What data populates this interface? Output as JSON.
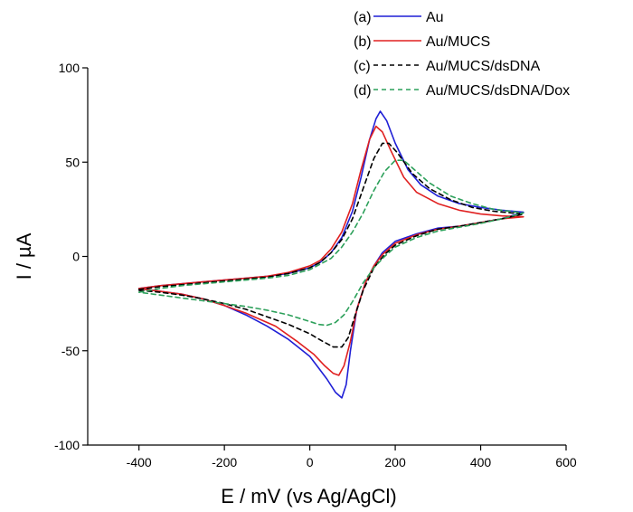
{
  "chart_data": {
    "type": "line",
    "title": "",
    "xlabel": "E / mV (vs Ag/AgCl)",
    "ylabel": "I / µA",
    "xlim": [
      -520,
      600
    ],
    "ylim": [
      -100,
      100
    ],
    "xticks": [
      -400,
      -200,
      0,
      200,
      400,
      600
    ],
    "yticks": [
      -100,
      -50,
      0,
      50,
      100
    ],
    "xtick_labels": [
      "-400",
      "-200",
      "0",
      "200",
      "400",
      "600"
    ],
    "ytick_labels": [
      "-100",
      "-50",
      "0",
      "50",
      "100"
    ],
    "legend_position": "top-right",
    "series": [
      {
        "name": "Au",
        "tag": "(a)",
        "color": "#1f1fd6",
        "dash": "solid",
        "forward": [
          [
            -400,
            -17
          ],
          [
            -350,
            -15.5
          ],
          [
            -300,
            -14.5
          ],
          [
            -250,
            -13.5
          ],
          [
            -200,
            -12.5
          ],
          [
            -150,
            -11.5
          ],
          [
            -100,
            -10.5
          ],
          [
            -50,
            -9
          ],
          [
            0,
            -6
          ],
          [
            25,
            -3
          ],
          [
            50,
            2
          ],
          [
            75,
            10
          ],
          [
            100,
            24
          ],
          [
            120,
            42
          ],
          [
            140,
            62
          ],
          [
            155,
            73
          ],
          [
            165,
            77
          ],
          [
            180,
            72
          ],
          [
            200,
            60
          ],
          [
            230,
            46
          ],
          [
            260,
            38
          ],
          [
            300,
            32
          ],
          [
            350,
            28
          ],
          [
            400,
            26
          ],
          [
            450,
            24.5
          ],
          [
            500,
            23.5
          ]
        ],
        "reverse": [
          [
            500,
            23.5
          ],
          [
            450,
            20
          ],
          [
            400,
            18
          ],
          [
            350,
            16
          ],
          [
            300,
            15
          ],
          [
            250,
            12
          ],
          [
            200,
            8
          ],
          [
            170,
            2
          ],
          [
            150,
            -5
          ],
          [
            130,
            -14
          ],
          [
            110,
            -28
          ],
          [
            95,
            -50
          ],
          [
            85,
            -68
          ],
          [
            75,
            -75
          ],
          [
            60,
            -72
          ],
          [
            40,
            -65
          ],
          [
            20,
            -59
          ],
          [
            0,
            -53
          ],
          [
            -50,
            -44
          ],
          [
            -100,
            -37
          ],
          [
            -150,
            -31
          ],
          [
            -200,
            -26
          ],
          [
            -250,
            -22.5
          ],
          [
            -300,
            -20
          ],
          [
            -350,
            -18.5
          ],
          [
            -400,
            -17
          ]
        ]
      },
      {
        "name": "Au/MUCS",
        "tag": "(b)",
        "color": "#e02020",
        "dash": "solid",
        "forward": [
          [
            -400,
            -17
          ],
          [
            -350,
            -15.5
          ],
          [
            -300,
            -14.5
          ],
          [
            -250,
            -13.5
          ],
          [
            -200,
            -12.5
          ],
          [
            -150,
            -11.5
          ],
          [
            -100,
            -10.5
          ],
          [
            -50,
            -8.5
          ],
          [
            0,
            -5
          ],
          [
            25,
            -2
          ],
          [
            50,
            4
          ],
          [
            75,
            13
          ],
          [
            100,
            28
          ],
          [
            120,
            46
          ],
          [
            140,
            62
          ],
          [
            155,
            69
          ],
          [
            170,
            66
          ],
          [
            190,
            56
          ],
          [
            220,
            42
          ],
          [
            250,
            34
          ],
          [
            300,
            28
          ],
          [
            350,
            24.5
          ],
          [
            400,
            22.5
          ],
          [
            450,
            21.5
          ],
          [
            500,
            21
          ]
        ],
        "reverse": [
          [
            500,
            21
          ],
          [
            450,
            20
          ],
          [
            400,
            18
          ],
          [
            350,
            16
          ],
          [
            300,
            14.5
          ],
          [
            250,
            11.5
          ],
          [
            200,
            7
          ],
          [
            170,
            1
          ],
          [
            150,
            -5
          ],
          [
            130,
            -14
          ],
          [
            110,
            -28
          ],
          [
            95,
            -45
          ],
          [
            80,
            -58
          ],
          [
            68,
            -63
          ],
          [
            55,
            -62
          ],
          [
            35,
            -58
          ],
          [
            10,
            -52
          ],
          [
            -30,
            -45
          ],
          [
            -80,
            -37
          ],
          [
            -150,
            -30
          ],
          [
            -200,
            -26
          ],
          [
            -250,
            -22.5
          ],
          [
            -300,
            -20
          ],
          [
            -350,
            -18.5
          ],
          [
            -400,
            -17
          ]
        ]
      },
      {
        "name": "Au/MUCS/dsDNA",
        "tag": "(c)",
        "color": "#000000",
        "dash": "dashed",
        "forward": [
          [
            -400,
            -17.5
          ],
          [
            -350,
            -16
          ],
          [
            -300,
            -15
          ],
          [
            -250,
            -14
          ],
          [
            -200,
            -13
          ],
          [
            -150,
            -12
          ],
          [
            -100,
            -11
          ],
          [
            -50,
            -9
          ],
          [
            0,
            -6
          ],
          [
            25,
            -3
          ],
          [
            50,
            2
          ],
          [
            75,
            9
          ],
          [
            100,
            20
          ],
          [
            125,
            36
          ],
          [
            150,
            52
          ],
          [
            170,
            60
          ],
          [
            185,
            60
          ],
          [
            205,
            55
          ],
          [
            240,
            44
          ],
          [
            280,
            36
          ],
          [
            330,
            30
          ],
          [
            380,
            26
          ],
          [
            430,
            24
          ],
          [
            500,
            22.5
          ]
        ],
        "reverse": [
          [
            500,
            22.5
          ],
          [
            450,
            20
          ],
          [
            400,
            18
          ],
          [
            350,
            16
          ],
          [
            300,
            14.5
          ],
          [
            250,
            11
          ],
          [
            200,
            6
          ],
          [
            175,
            1
          ],
          [
            150,
            -6
          ],
          [
            125,
            -18
          ],
          [
            105,
            -32
          ],
          [
            90,
            -43
          ],
          [
            75,
            -48
          ],
          [
            55,
            -48
          ],
          [
            30,
            -45
          ],
          [
            0,
            -41
          ],
          [
            -50,
            -36
          ],
          [
            -100,
            -32
          ],
          [
            -150,
            -28
          ],
          [
            -200,
            -25
          ],
          [
            -250,
            -22.5
          ],
          [
            -300,
            -20.5
          ],
          [
            -350,
            -19
          ],
          [
            -400,
            -18
          ]
        ]
      },
      {
        "name": "Au/MUCS/dsDNA/Dox",
        "tag": "(d)",
        "color": "#2ca05a",
        "dash": "dashed",
        "forward": [
          [
            -400,
            -19
          ],
          [
            -350,
            -17
          ],
          [
            -300,
            -15.5
          ],
          [
            -250,
            -14.5
          ],
          [
            -200,
            -13.5
          ],
          [
            -150,
            -12.5
          ],
          [
            -100,
            -11.5
          ],
          [
            -50,
            -10
          ],
          [
            0,
            -7
          ],
          [
            50,
            -1
          ],
          [
            75,
            5
          ],
          [
            100,
            13
          ],
          [
            125,
            23
          ],
          [
            150,
            35
          ],
          [
            175,
            45
          ],
          [
            200,
            51
          ],
          [
            220,
            51
          ],
          [
            245,
            46
          ],
          [
            280,
            39
          ],
          [
            330,
            32
          ],
          [
            380,
            28
          ],
          [
            430,
            25
          ],
          [
            500,
            23
          ]
        ],
        "reverse": [
          [
            500,
            23
          ],
          [
            450,
            20
          ],
          [
            400,
            17.5
          ],
          [
            350,
            15.5
          ],
          [
            300,
            13.5
          ],
          [
            250,
            10
          ],
          [
            200,
            5
          ],
          [
            175,
            0
          ],
          [
            150,
            -6
          ],
          [
            125,
            -14
          ],
          [
            100,
            -24
          ],
          [
            80,
            -31
          ],
          [
            60,
            -35
          ],
          [
            40,
            -36.5
          ],
          [
            20,
            -36
          ],
          [
            0,
            -34.5
          ],
          [
            -50,
            -31
          ],
          [
            -100,
            -28.5
          ],
          [
            -150,
            -26.5
          ],
          [
            -200,
            -25
          ],
          [
            -250,
            -23.5
          ],
          [
            -300,
            -22
          ],
          [
            -350,
            -20.5
          ],
          [
            -400,
            -19
          ]
        ]
      }
    ]
  }
}
